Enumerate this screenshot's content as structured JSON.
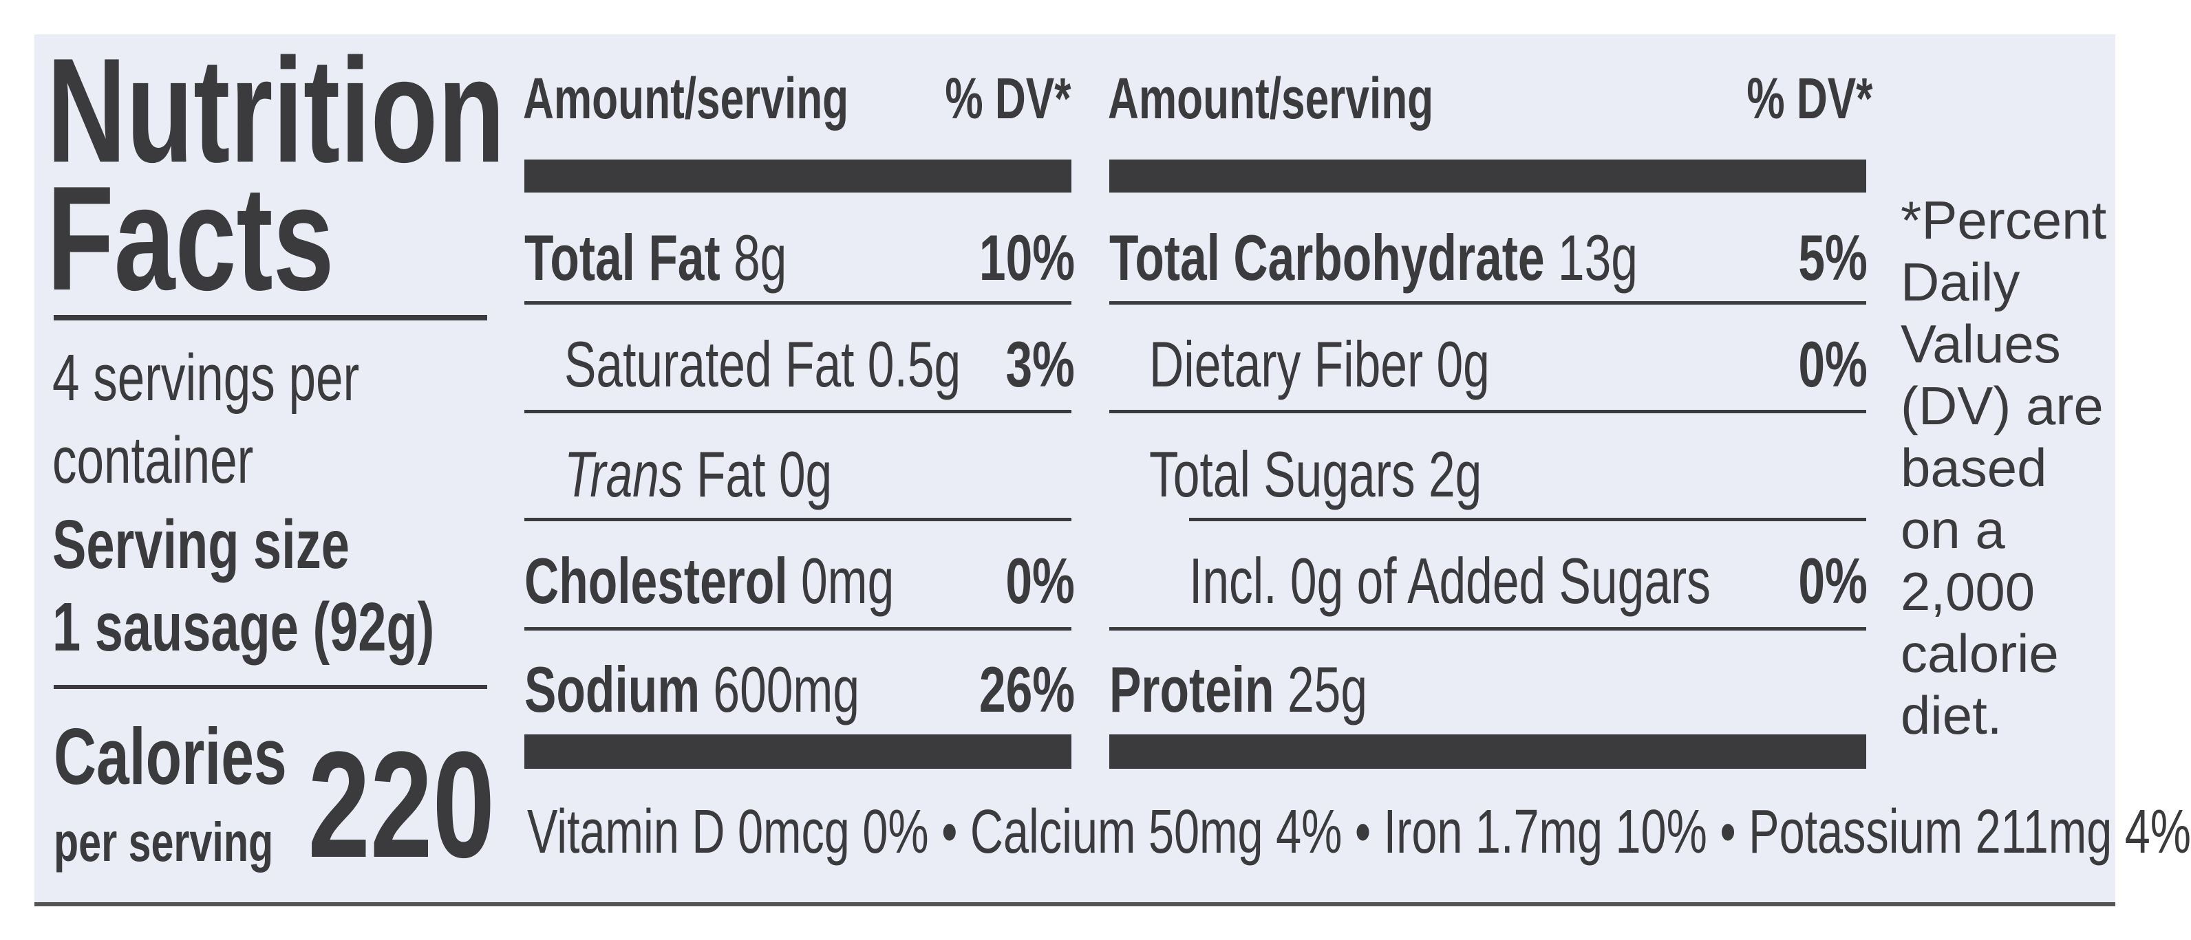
{
  "title_line1": "Nutrition",
  "title_line2": "Facts",
  "servings": {
    "line1": "4 servings per",
    "line2": "container",
    "size_label": "Serving size",
    "size_value": "1 sausage (92g)"
  },
  "calories": {
    "label": "Calories",
    "sub": "per serving",
    "value": "220"
  },
  "headers": {
    "amount": "Amount/serving",
    "dv": "% DV*"
  },
  "left_rows": [
    {
      "name": "Total Fat",
      "amount": "8g",
      "dv": "10%"
    },
    {
      "name": "Saturated Fat",
      "amount": "0.5g",
      "dv": "3%"
    },
    {
      "name": "Trans",
      "name_rest": "Fat",
      "amount": "0g",
      "dv": ""
    },
    {
      "name": "Cholesterol",
      "amount": "0mg",
      "dv": "0%"
    },
    {
      "name": "Sodium",
      "amount": "600mg",
      "dv": "26%"
    }
  ],
  "right_rows": [
    {
      "name": "Total Carbohydrate",
      "amount": "13g",
      "dv": "5%"
    },
    {
      "name": "Dietary Fiber",
      "amount": "0g",
      "dv": "0%"
    },
    {
      "name": "Total Sugars",
      "amount": "2g",
      "dv": ""
    },
    {
      "name": "Incl. 0g of Added Sugars",
      "amount": "",
      "dv": "0%"
    },
    {
      "name": "Protein",
      "amount": "25g",
      "dv": ""
    }
  ],
  "micronutrients": "Vitamin D 0mcg 0% • Calcium 50mg 4% • Iron 1.7mg 10% • Potassium 211mg 4%",
  "footnote": [
    "*Percent",
    "Daily",
    "Values",
    "(DV) are",
    "based",
    "on a",
    "2,000",
    "calorie",
    "diet."
  ],
  "colors": {
    "ink": "#3b3a3d",
    "background": "#eaedf5"
  }
}
